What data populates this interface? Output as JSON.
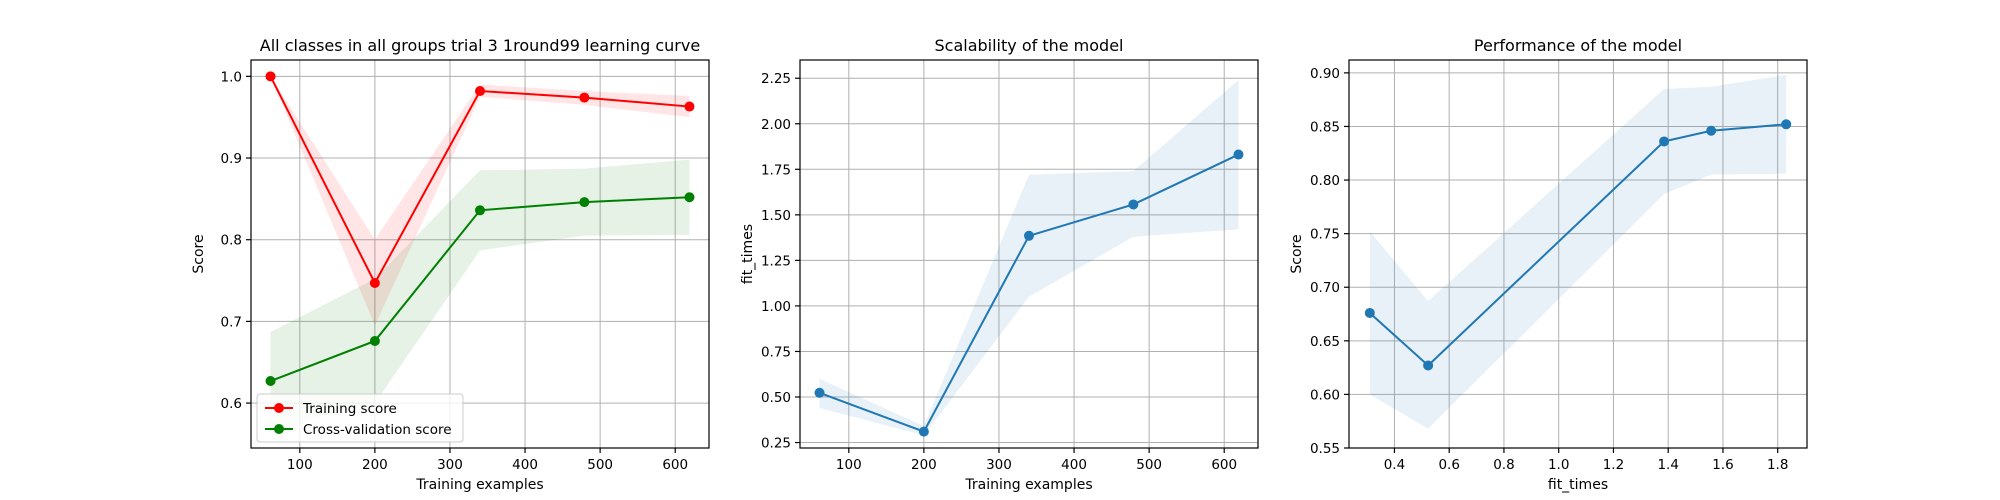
{
  "chart_data": [
    {
      "type": "line",
      "title": "All classes in all groups trial 3 1round99 learning curve",
      "xlabel": "Training examples",
      "ylabel": "Score",
      "xlim": [
        35,
        645
      ],
      "ylim": [
        0.545,
        1.02
      ],
      "xticks": [
        100,
        200,
        300,
        400,
        500,
        600
      ],
      "yticks": [
        0.6,
        0.7,
        0.8,
        0.9,
        1.0
      ],
      "grid": true,
      "legend": "lower-left",
      "series": [
        {
          "name": "Training score",
          "color": "#ff0000",
          "x": [
            61,
            200,
            340,
            479,
            619
          ],
          "y": [
            1.0,
            0.747,
            0.982,
            0.974,
            0.963
          ],
          "band_low": [
            1.0,
            0.695,
            0.975,
            0.965,
            0.95
          ],
          "band_high": [
            1.0,
            0.8,
            0.99,
            0.982,
            0.976
          ]
        },
        {
          "name": "Cross-validation score",
          "color": "#008000",
          "x": [
            61,
            200,
            340,
            479,
            619
          ],
          "y": [
            0.627,
            0.676,
            0.836,
            0.846,
            0.852
          ],
          "band_low": [
            0.568,
            0.6,
            0.787,
            0.805,
            0.806
          ],
          "band_high": [
            0.687,
            0.752,
            0.885,
            0.887,
            0.898
          ]
        }
      ]
    },
    {
      "type": "line",
      "title": "Scalability of the model",
      "xlabel": "Training examples",
      "ylabel": "fit_times",
      "xlim": [
        35,
        645
      ],
      "ylim": [
        0.22,
        2.35
      ],
      "xticks": [
        100,
        200,
        300,
        400,
        500,
        600
      ],
      "yticks": [
        0.25,
        0.5,
        0.75,
        1.0,
        1.25,
        1.5,
        1.75,
        2.0,
        2.25
      ],
      "grid": true,
      "series": [
        {
          "color": "#1f77b4",
          "x": [
            61,
            200,
            340,
            479,
            619
          ],
          "y": [
            0.523,
            0.31,
            1.385,
            1.557,
            1.831
          ],
          "band_low": [
            0.44,
            0.29,
            1.05,
            1.38,
            1.42
          ],
          "band_high": [
            0.6,
            0.34,
            1.72,
            1.74,
            2.24
          ]
        }
      ]
    },
    {
      "type": "line",
      "title": "Performance of the model",
      "xlabel": "fit_times",
      "ylabel": "Score",
      "xlim": [
        0.234,
        1.907
      ],
      "ylim": [
        0.55,
        0.912
      ],
      "xticks": [
        0.4,
        0.6,
        0.8,
        1.0,
        1.2,
        1.4,
        1.6,
        1.8
      ],
      "yticks": [
        0.55,
        0.6,
        0.65,
        0.7,
        0.75,
        0.8,
        0.85,
        0.9
      ],
      "grid": true,
      "series": [
        {
          "color": "#1f77b4",
          "x": [
            0.31,
            0.523,
            1.385,
            1.557,
            1.831
          ],
          "y": [
            0.676,
            0.627,
            0.836,
            0.846,
            0.852
          ],
          "band_low": [
            0.6,
            0.568,
            0.787,
            0.805,
            0.806
          ],
          "band_high": [
            0.752,
            0.687,
            0.885,
            0.887,
            0.898
          ]
        }
      ]
    }
  ]
}
